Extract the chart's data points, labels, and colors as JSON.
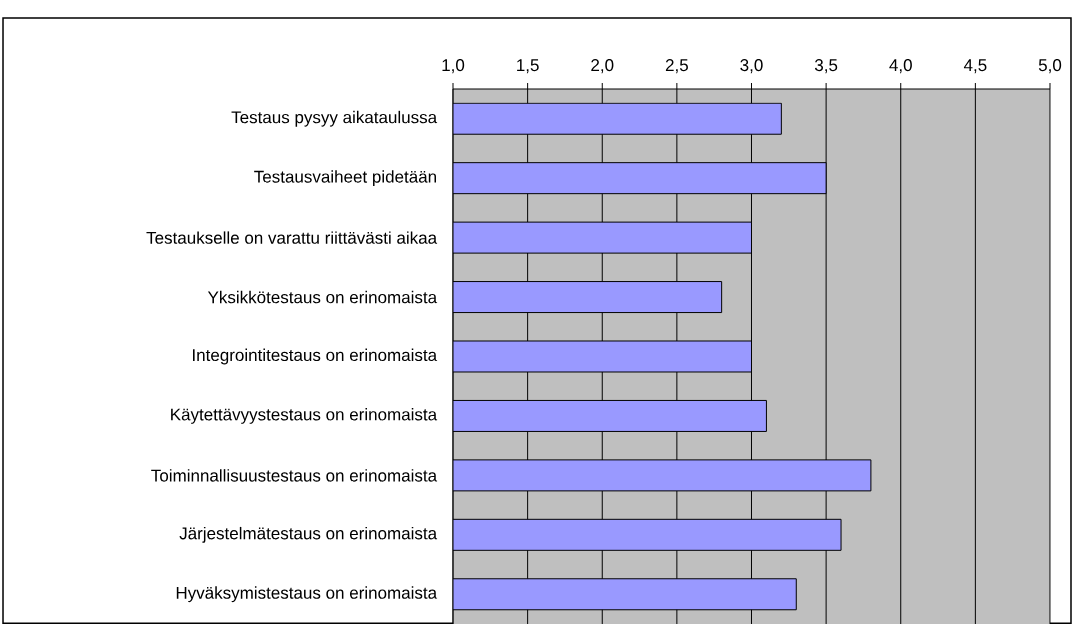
{
  "chart_data": {
    "type": "bar",
    "orientation": "horizontal",
    "grid": "x",
    "color": "#9999ff",
    "categories": [
      "Testaus pysyy aikataulussa",
      "Testausvaiheet pidetään",
      "Testaukselle on varattu riittävästi aikaa",
      "Yksikkötestaus on erinomaista",
      "Integrointitestaus on erinomaista",
      "Käytettävyystestaus on erinomaista",
      "Toiminnallisuustestaus on erinomaista",
      "Järjestelmätestaus on erinomaista",
      "Hyväksymistestaus on erinomaista"
    ],
    "values": [
      3.2,
      3.5,
      3.0,
      2.8,
      3.0,
      3.1,
      3.8,
      3.6,
      3.3
    ],
    "xlim": [
      1,
      5
    ],
    "xticks": [
      {
        "value": 1,
        "label": "1,0"
      },
      {
        "value": 1.5,
        "label": "1,5"
      },
      {
        "value": 2,
        "label": "2,0"
      },
      {
        "value": 2.5,
        "label": "2,5"
      },
      {
        "value": 3,
        "label": "3,0"
      },
      {
        "value": 3.5,
        "label": "3,5"
      },
      {
        "value": 4,
        "label": "4,0"
      },
      {
        "value": 4.5,
        "label": "4,5"
      },
      {
        "value": 5,
        "label": "5,0"
      }
    ]
  }
}
